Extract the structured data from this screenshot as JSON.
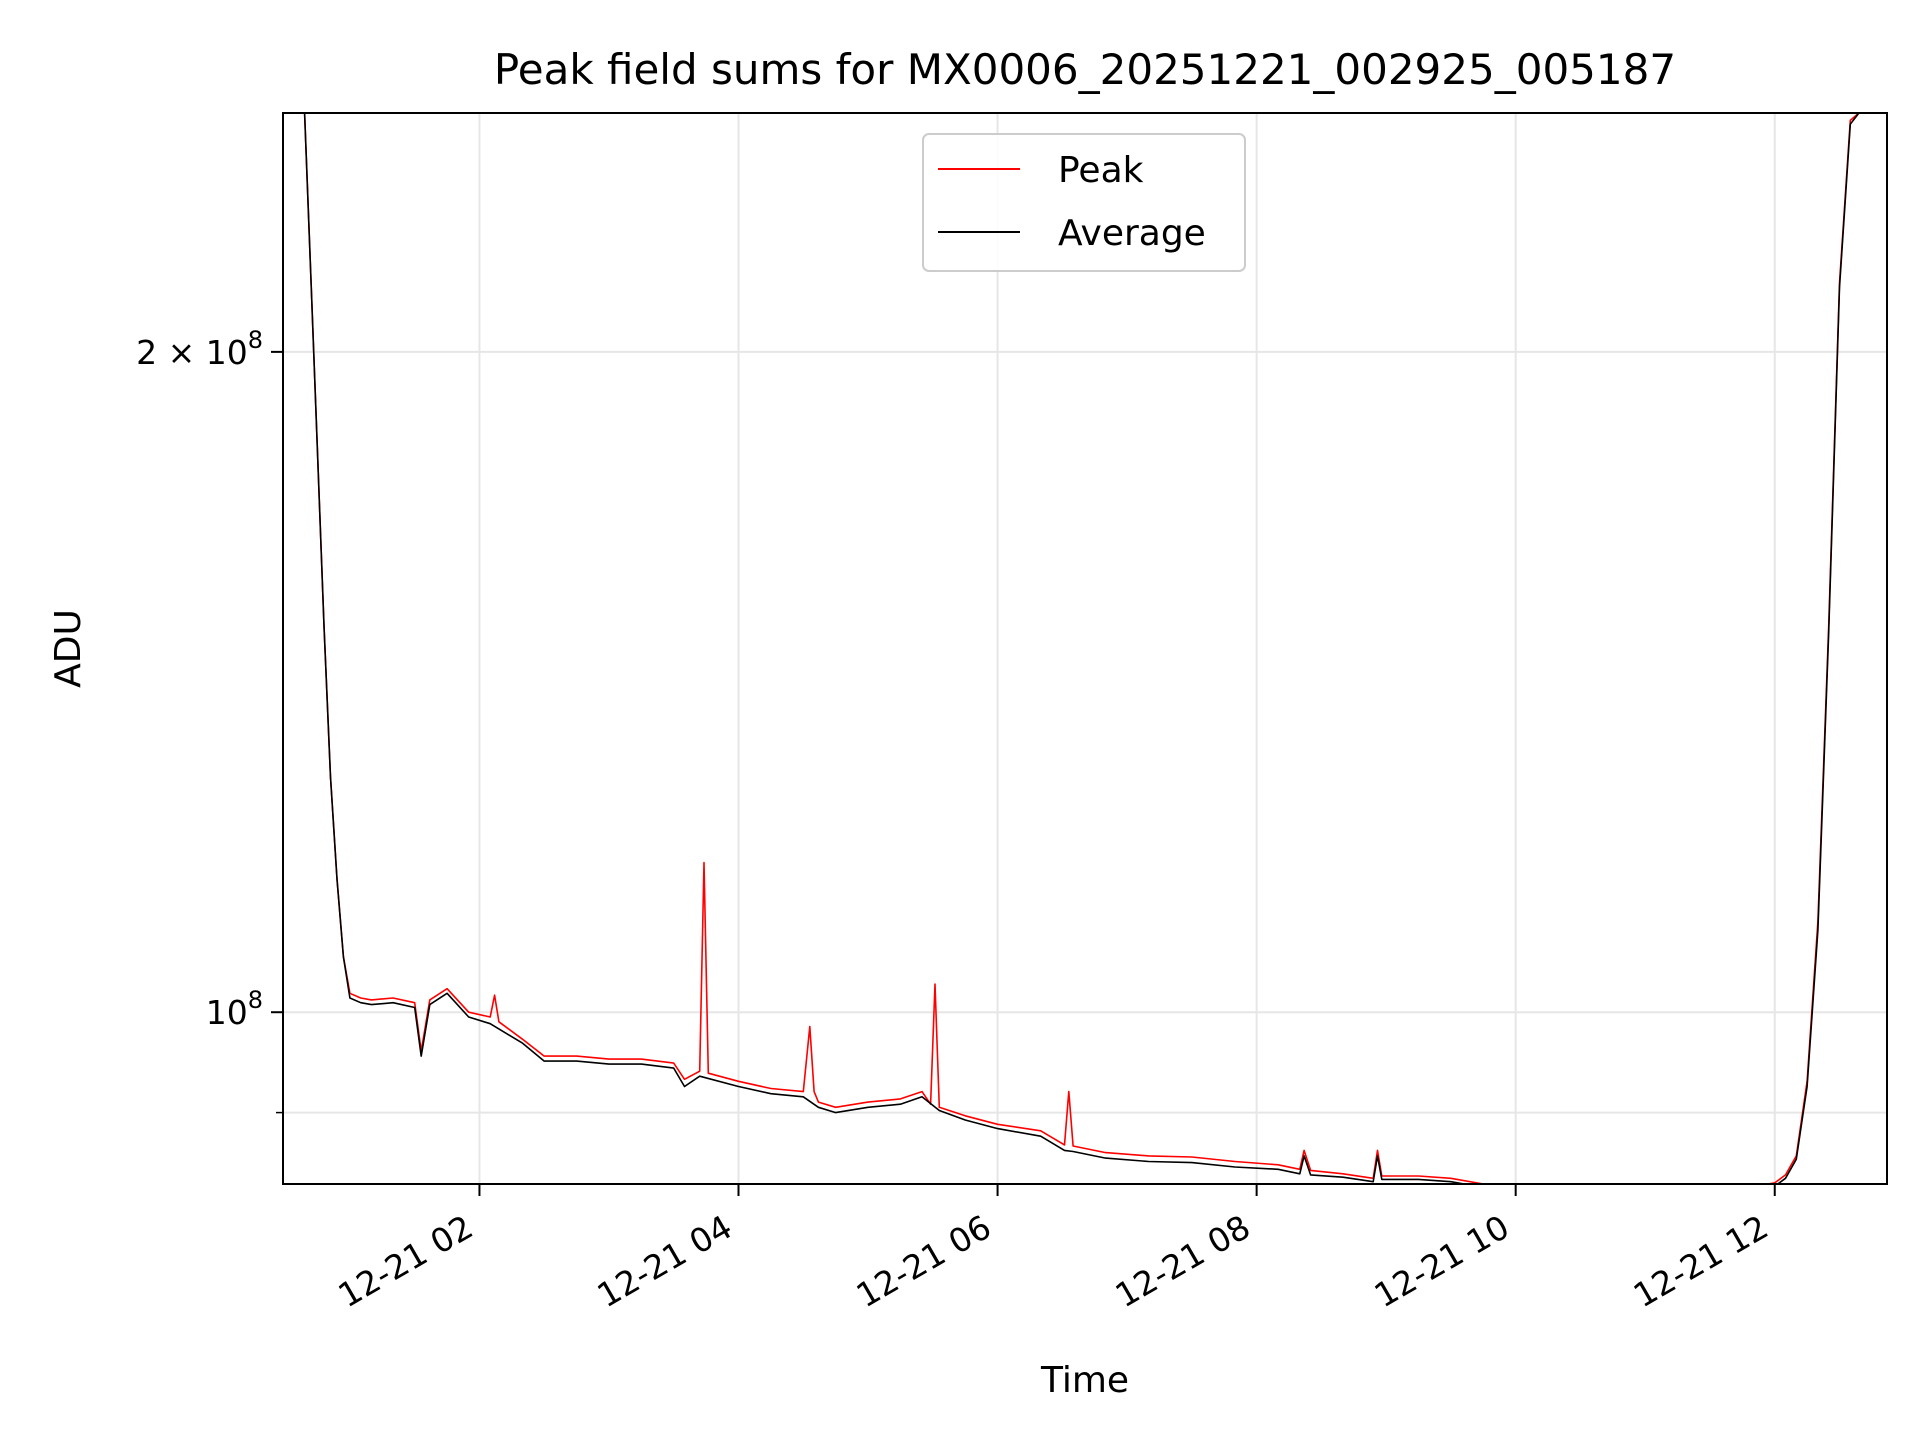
{
  "chart_data": {
    "type": "line",
    "title": "Peak field sums for MX0006_20251221_002925_005187",
    "xlabel": "Time",
    "ylabel": "ADU",
    "yscale": "log",
    "grid": true,
    "legend_position": "upper center",
    "x_range": [
      "2025-12-21 00:29",
      "2025-12-21 12:52"
    ],
    "y_range": [
      83500000,
      257000000
    ],
    "x_ticks": [
      {
        "value": "2025-12-21 02:00",
        "label": "12-21 02"
      },
      {
        "value": "2025-12-21 04:00",
        "label": "12-21 04"
      },
      {
        "value": "2025-12-21 06:00",
        "label": "12-21 06"
      },
      {
        "value": "2025-12-21 08:00",
        "label": "12-21 08"
      },
      {
        "value": "2025-12-21 10:00",
        "label": "12-21 10"
      },
      {
        "value": "2025-12-21 12:00",
        "label": "12-21 12"
      }
    ],
    "y_ticks": [
      {
        "value": 100000000,
        "label_base": "10",
        "label_exp": "8",
        "label_prefix": ""
      },
      {
        "value": 200000000,
        "label_base": "10",
        "label_exp": "8",
        "label_prefix": "2 × "
      }
    ],
    "y_minor_ticks": [
      90000000
    ],
    "series": [
      {
        "name": "Peak",
        "color": "#ff0000",
        "x": [
          "2025-12-21 00:39",
          "2025-12-21 00:42",
          "2025-12-21 00:45",
          "2025-12-21 00:48",
          "2025-12-21 00:51",
          "2025-12-21 00:54",
          "2025-12-21 00:57",
          "2025-12-21 01:00",
          "2025-12-21 01:05",
          "2025-12-21 01:10",
          "2025-12-21 01:20",
          "2025-12-21 01:30",
          "2025-12-21 01:33",
          "2025-12-21 01:37",
          "2025-12-21 01:45",
          "2025-12-21 01:55",
          "2025-12-21 02:05",
          "2025-12-21 02:07",
          "2025-12-21 02:09",
          "2025-12-21 02:20",
          "2025-12-21 02:30",
          "2025-12-21 02:45",
          "2025-12-21 03:00",
          "2025-12-21 03:15",
          "2025-12-21 03:30",
          "2025-12-21 03:35",
          "2025-12-21 03:42",
          "2025-12-21 03:44",
          "2025-12-21 03:46",
          "2025-12-21 04:00",
          "2025-12-21 04:15",
          "2025-12-21 04:30",
          "2025-12-21 04:33",
          "2025-12-21 04:35",
          "2025-12-21 04:37",
          "2025-12-21 04:45",
          "2025-12-21 05:00",
          "2025-12-21 05:15",
          "2025-12-21 05:25",
          "2025-12-21 05:29",
          "2025-12-21 05:31",
          "2025-12-21 05:33",
          "2025-12-21 05:45",
          "2025-12-21 06:00",
          "2025-12-21 06:20",
          "2025-12-21 06:31",
          "2025-12-21 06:33",
          "2025-12-21 06:35",
          "2025-12-21 06:50",
          "2025-12-21 07:10",
          "2025-12-21 07:30",
          "2025-12-21 07:50",
          "2025-12-21 08:10",
          "2025-12-21 08:20",
          "2025-12-21 08:22",
          "2025-12-21 08:25",
          "2025-12-21 08:40",
          "2025-12-21 08:54",
          "2025-12-21 08:56",
          "2025-12-21 08:58",
          "2025-12-21 09:15",
          "2025-12-21 09:30",
          "2025-12-21 09:45",
          "2025-12-21 10:00",
          "2025-12-21 10:30",
          "2025-12-21 11:00",
          "2025-12-21 11:20",
          "2025-12-21 11:35",
          "2025-12-21 11:50",
          "2025-12-21 12:00",
          "2025-12-21 12:05",
          "2025-12-21 12:10",
          "2025-12-21 12:15",
          "2025-12-21 12:20",
          "2025-12-21 12:25",
          "2025-12-21 12:30",
          "2025-12-21 12:35",
          "2025-12-21 12:39"
        ],
        "y": [
          257000000,
          215000000,
          180000000,
          150000000,
          128000000,
          115000000,
          106000000,
          102000000,
          101500000,
          101300000,
          101500000,
          101000000,
          96000000,
          101300000,
          102500000,
          100000000,
          99500000,
          101800000,
          99000000,
          97200000,
          95500000,
          95500000,
          95200000,
          95200000,
          94800000,
          93200000,
          94000000,
          117000000,
          93800000,
          93000000,
          92300000,
          92000000,
          98500000,
          92000000,
          91000000,
          90500000,
          91000000,
          91300000,
          92000000,
          90800000,
          103000000,
          90500000,
          89700000,
          88900000,
          88300000,
          87000000,
          92000000,
          86900000,
          86300000,
          86000000,
          85900000,
          85500000,
          85200000,
          84800000,
          86500000,
          84700000,
          84400000,
          84000000,
          86500000,
          84200000,
          84200000,
          84000000,
          83500000,
          83300000,
          83400000,
          83300000,
          83200000,
          83200000,
          83300000,
          83600000,
          84300000,
          86000000,
          93000000,
          110000000,
          150000000,
          215000000,
          255000000,
          257000000
        ]
      },
      {
        "name": "Average",
        "color": "#000000",
        "x": [
          "2025-12-21 00:39",
          "2025-12-21 00:42",
          "2025-12-21 00:45",
          "2025-12-21 00:48",
          "2025-12-21 00:51",
          "2025-12-21 00:54",
          "2025-12-21 00:57",
          "2025-12-21 01:00",
          "2025-12-21 01:05",
          "2025-12-21 01:10",
          "2025-12-21 01:20",
          "2025-12-21 01:30",
          "2025-12-21 01:33",
          "2025-12-21 01:37",
          "2025-12-21 01:45",
          "2025-12-21 01:55",
          "2025-12-21 02:05",
          "2025-12-21 02:20",
          "2025-12-21 02:30",
          "2025-12-21 02:45",
          "2025-12-21 03:00",
          "2025-12-21 03:15",
          "2025-12-21 03:30",
          "2025-12-21 03:35",
          "2025-12-21 03:42",
          "2025-12-21 04:00",
          "2025-12-21 04:15",
          "2025-12-21 04:30",
          "2025-12-21 04:37",
          "2025-12-21 04:45",
          "2025-12-21 05:00",
          "2025-12-21 05:15",
          "2025-12-21 05:25",
          "2025-12-21 05:33",
          "2025-12-21 05:45",
          "2025-12-21 06:00",
          "2025-12-21 06:20",
          "2025-12-21 06:31",
          "2025-12-21 06:35",
          "2025-12-21 06:50",
          "2025-12-21 07:10",
          "2025-12-21 07:30",
          "2025-12-21 07:50",
          "2025-12-21 08:10",
          "2025-12-21 08:20",
          "2025-12-21 08:22",
          "2025-12-21 08:25",
          "2025-12-21 08:40",
          "2025-12-21 08:54",
          "2025-12-21 08:56",
          "2025-12-21 08:58",
          "2025-12-21 09:15",
          "2025-12-21 09:30",
          "2025-12-21 09:45",
          "2025-12-21 10:00",
          "2025-12-21 10:30",
          "2025-12-21 11:00",
          "2025-12-21 11:20",
          "2025-12-21 11:35",
          "2025-12-21 11:50",
          "2025-12-21 12:00",
          "2025-12-21 12:05",
          "2025-12-21 12:10",
          "2025-12-21 12:15",
          "2025-12-21 12:20",
          "2025-12-21 12:25",
          "2025-12-21 12:30",
          "2025-12-21 12:35",
          "2025-12-21 12:39"
        ],
        "y": [
          257000000,
          215000000,
          180000000,
          150000000,
          128000000,
          115000000,
          106000000,
          101500000,
          101000000,
          100800000,
          101000000,
          100500000,
          95500000,
          100800000,
          102000000,
          99500000,
          98800000,
          96800000,
          95000000,
          95000000,
          94700000,
          94700000,
          94300000,
          92500000,
          93500000,
          92500000,
          91800000,
          91500000,
          90500000,
          90000000,
          90500000,
          90800000,
          91500000,
          90200000,
          89300000,
          88500000,
          87800000,
          86500000,
          86400000,
          85800000,
          85500000,
          85400000,
          85000000,
          84800000,
          84400000,
          86000000,
          84300000,
          84100000,
          83700000,
          86000000,
          83900000,
          83900000,
          83700000,
          83200000,
          83000000,
          83100000,
          83000000,
          82900000,
          82900000,
          83000000,
          83300000,
          84000000,
          85700000,
          92500000,
          109000000,
          149000000,
          214000000,
          254000000,
          257000000
        ]
      }
    ]
  }
}
